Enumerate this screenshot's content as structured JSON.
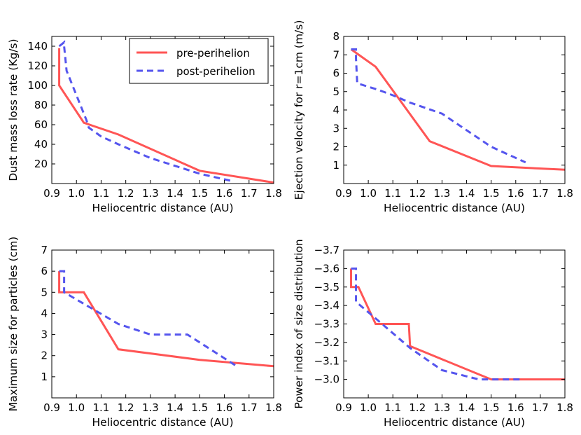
{
  "colors": {
    "pre": "#ff5555",
    "post": "#5555ee"
  },
  "legend": {
    "pre_label": "pre-perihelion",
    "post_label": "post-perihelion",
    "placement": "top-right of first panel"
  },
  "chart_data": [
    {
      "type": "line",
      "title": "",
      "xlabel": "Heliocentric distance (AU)",
      "ylabel": "Dust mass loss rate (Kg/s)",
      "xlim": [
        0.9,
        1.8
      ],
      "ylim": [
        0,
        150
      ],
      "xticks": [
        "0.9",
        "1.0",
        "1.1",
        "1.2",
        "1.3",
        "1.4",
        "1.5",
        "1.6",
        "1.7",
        "1.8"
      ],
      "yticks": [
        20,
        40,
        60,
        80,
        100,
        120,
        140
      ],
      "series": [
        {
          "name": "pre-perihelion",
          "x": [
            0.93,
            0.93,
            0.93,
            1.03,
            1.17,
            1.5,
            1.8
          ],
          "y": [
            138,
            138,
            100,
            62,
            50,
            13,
            1
          ]
        },
        {
          "name": "post-perihelion",
          "x": [
            0.93,
            0.95,
            0.95,
            0.96,
            1.04,
            1.05,
            1.1,
            1.17,
            1.3,
            1.5,
            1.64
          ],
          "y": [
            140,
            144,
            140,
            115,
            65,
            57,
            48,
            40,
            26,
            10,
            2
          ]
        }
      ]
    },
    {
      "type": "line",
      "title": "",
      "xlabel": "Heliocentric distance (AU)",
      "ylabel": "Ejection velocity for r=1cm (m/s)",
      "xlim": [
        0.9,
        1.8
      ],
      "ylim": [
        0,
        8
      ],
      "xticks": [
        "0.9",
        "1.0",
        "1.1",
        "1.2",
        "1.3",
        "1.4",
        "1.5",
        "1.6",
        "1.7",
        "1.8"
      ],
      "yticks": [
        1,
        2,
        3,
        4,
        5,
        6,
        7,
        8
      ],
      "series": [
        {
          "name": "pre-perihelion",
          "x": [
            0.93,
            1.03,
            1.25,
            1.5,
            1.8
          ],
          "y": [
            7.3,
            6.35,
            2.3,
            0.95,
            0.75
          ]
        },
        {
          "name": "post-perihelion",
          "x": [
            0.93,
            0.95,
            0.95,
            0.955,
            1.04,
            1.1,
            1.17,
            1.3,
            1.5,
            1.64
          ],
          "y": [
            7.3,
            7.3,
            6.8,
            5.45,
            5.1,
            4.8,
            4.4,
            3.8,
            2.0,
            1.15
          ]
        }
      ]
    },
    {
      "type": "line",
      "title": "",
      "xlabel": "Heliocentric distance (AU)",
      "ylabel": "Maximum size for particles (cm)",
      "xlim": [
        0.9,
        1.8
      ],
      "ylim": [
        0,
        7
      ],
      "xticks": [
        "0.9",
        "1.0",
        "1.1",
        "1.2",
        "1.3",
        "1.4",
        "1.5",
        "1.6",
        "1.7",
        "1.8"
      ],
      "yticks": [
        1,
        2,
        3,
        4,
        5,
        6,
        7
      ],
      "series": [
        {
          "name": "pre-perihelion",
          "x": [
            0.93,
            0.93,
            1.03,
            1.17,
            1.5,
            1.8
          ],
          "y": [
            6.0,
            5.0,
            5.0,
            2.3,
            1.8,
            1.5
          ]
        },
        {
          "name": "post-perihelion",
          "x": [
            0.93,
            0.95,
            0.95,
            1.17,
            1.3,
            1.45,
            1.65
          ],
          "y": [
            6.0,
            6.0,
            5.0,
            3.5,
            3.0,
            3.0,
            1.5
          ]
        }
      ]
    },
    {
      "type": "line",
      "title": "",
      "xlabel": "Heliocentric distance (AU)",
      "ylabel": "Power index of size distribution",
      "xlim": [
        0.9,
        1.8
      ],
      "ylim": [
        -3.7,
        -2.9
      ],
      "yaxis_inverted": true,
      "xticks": [
        "0.9",
        "1.0",
        "1.1",
        "1.2",
        "1.3",
        "1.4",
        "1.5",
        "1.6",
        "1.7",
        "1.8"
      ],
      "yticks": [
        "-3.7",
        "-3.6",
        "-3.5",
        "-3.4",
        "-3.3",
        "-3.2",
        "-3.1",
        "-3.0"
      ],
      "series": [
        {
          "name": "pre-perihelion",
          "x": [
            0.93,
            0.93,
            0.96,
            1.03,
            1.165,
            1.17,
            1.5,
            1.8
          ],
          "y": [
            -3.6,
            -3.5,
            -3.5,
            -3.3,
            -3.3,
            -3.18,
            -3.0,
            -3.0
          ]
        },
        {
          "name": "post-perihelion",
          "x": [
            0.93,
            0.95,
            0.95,
            1.03,
            1.17,
            1.3,
            1.45,
            1.63
          ],
          "y": [
            -3.6,
            -3.6,
            -3.42,
            -3.33,
            -3.17,
            -3.05,
            -3.0,
            -3.0
          ]
        }
      ]
    }
  ]
}
